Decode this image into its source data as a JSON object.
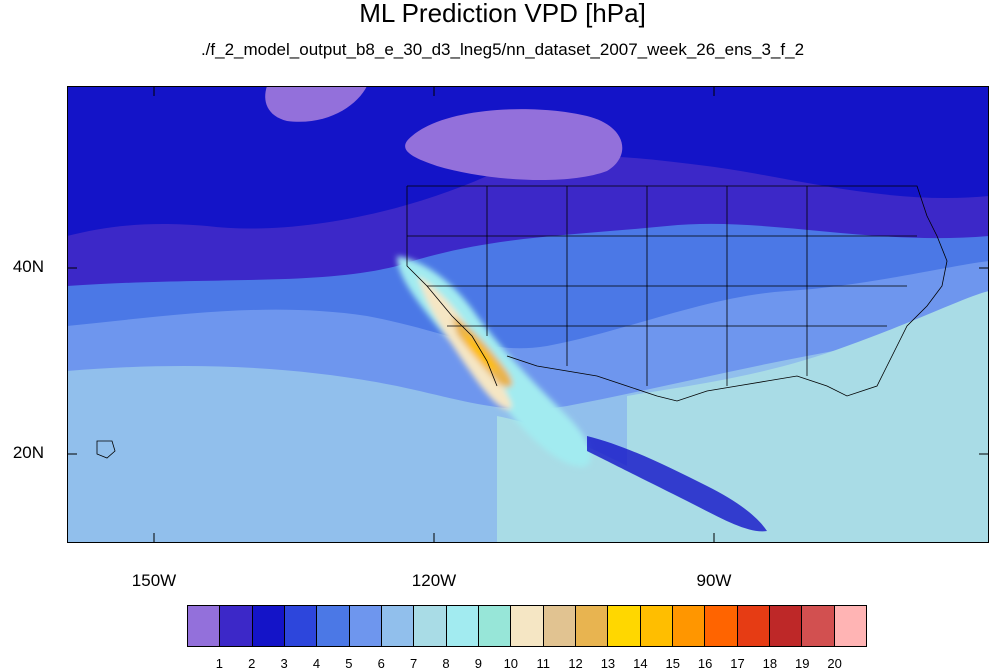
{
  "title": "ML Prediction VPD [hPa]",
  "subtitle": "./f_2_model_output_b8_e_30_d3_lneg5/nn_dataset_2007_week_26_ens_3_f_2",
  "map": {
    "lat_labels": [
      "40N",
      "20N"
    ],
    "lon_labels": [
      "150W",
      "120W",
      "90W"
    ],
    "lat_range": [
      10,
      59
    ],
    "lon_range": [
      -160,
      -61
    ]
  },
  "colorbar": {
    "labels": [
      "1",
      "2",
      "3",
      "4",
      "5",
      "6",
      "7",
      "8",
      "9",
      "10",
      "11",
      "12",
      "13",
      "14",
      "15",
      "16",
      "17",
      "18",
      "19",
      "20"
    ],
    "colors": [
      "#9370db",
      "#3c28c8",
      "#1414c8",
      "#2d46dc",
      "#4b78e6",
      "#6e96ee",
      "#91bfec",
      "#a9dce6",
      "#a2ebf0",
      "#97e6d8",
      "#f5e6c4",
      "#e1c391",
      "#e8b450",
      "#ffd700",
      "#ffbe00",
      "#ff9600",
      "#ff6400",
      "#e63c14",
      "#be2828",
      "#d25050",
      "#ffb4b4"
    ]
  }
}
